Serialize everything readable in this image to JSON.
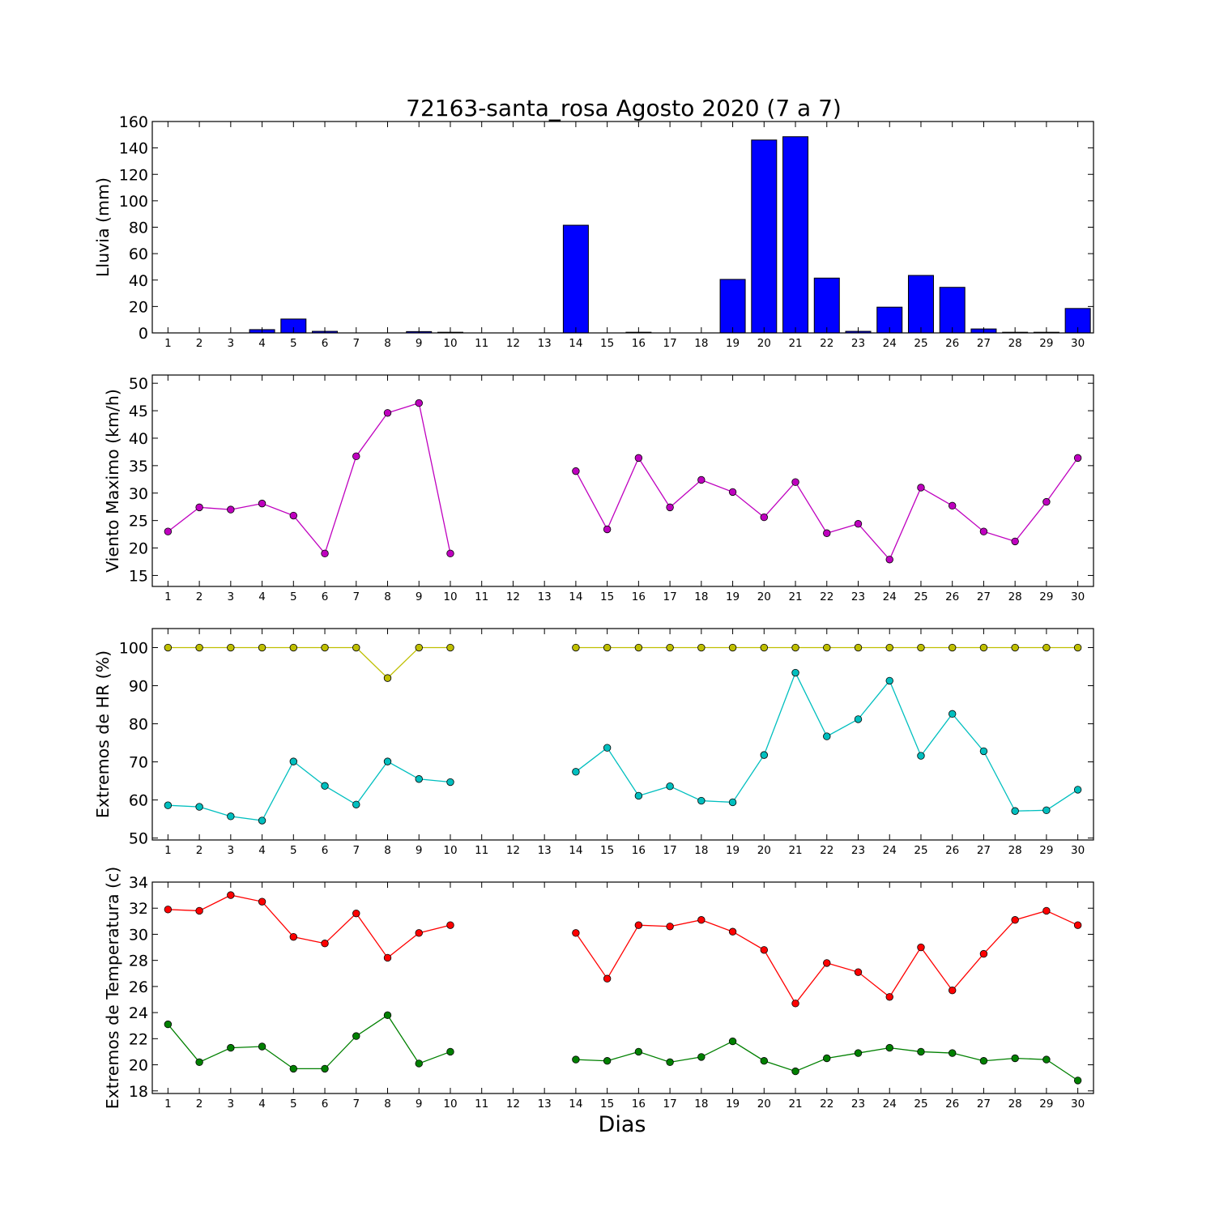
{
  "title": "72163-santa_rosa Agosto 2020  (7 a 7)",
  "xlabel": "Dias",
  "chart_data": [
    {
      "type": "bar",
      "ylabel": "Lluvia (mm)",
      "ylim": [
        0,
        160
      ],
      "yticks": [
        0,
        20,
        40,
        60,
        80,
        100,
        120,
        140,
        160
      ],
      "x": [
        1,
        2,
        3,
        4,
        5,
        6,
        7,
        8,
        9,
        10,
        11,
        12,
        13,
        14,
        15,
        16,
        17,
        18,
        19,
        20,
        21,
        22,
        23,
        24,
        25,
        26,
        27,
        28,
        29,
        30
      ],
      "series": [
        {
          "color": "#0000ff",
          "values": [
            0,
            0,
            0,
            2.5,
            10.5,
            1.2,
            0,
            0,
            1.0,
            0.5,
            0,
            0,
            0,
            81.5,
            0,
            0.5,
            0,
            0,
            40.5,
            146,
            148.5,
            41.5,
            1.2,
            19.5,
            43.5,
            34.5,
            3.0,
            0.5,
            0.5,
            18.5
          ]
        }
      ]
    },
    {
      "type": "line",
      "ylabel": "Viento Maximo (km/h)",
      "ylim": [
        13,
        51.5
      ],
      "yticks": [
        15,
        20,
        25,
        30,
        35,
        40,
        45,
        50
      ],
      "x": [
        1,
        2,
        3,
        4,
        5,
        6,
        7,
        8,
        9,
        10,
        11,
        12,
        13,
        14,
        15,
        16,
        17,
        18,
        19,
        20,
        21,
        22,
        23,
        24,
        25,
        26,
        27,
        28,
        29,
        30
      ],
      "series": [
        {
          "color": "#bf00bf",
          "values": [
            23,
            27.4,
            27,
            28.1,
            25.9,
            19,
            36.7,
            44.6,
            46.4,
            19,
            null,
            null,
            null,
            34,
            23.4,
            36.4,
            27.4,
            32.4,
            30.2,
            25.6,
            32,
            22.7,
            24.4,
            17.9,
            31,
            27.7,
            23,
            21.2,
            28.4,
            36.4
          ]
        }
      ]
    },
    {
      "type": "line",
      "ylabel": "Extremos de HR (%)",
      "ylim": [
        49.5,
        105
      ],
      "yticks": [
        50,
        60,
        70,
        80,
        90,
        100
      ],
      "x": [
        1,
        2,
        3,
        4,
        5,
        6,
        7,
        8,
        9,
        10,
        11,
        12,
        13,
        14,
        15,
        16,
        17,
        18,
        19,
        20,
        21,
        22,
        23,
        24,
        25,
        26,
        27,
        28,
        29,
        30
      ],
      "series": [
        {
          "color": "#bfbf00",
          "values": [
            100,
            100,
            100,
            100,
            100,
            100,
            100,
            92,
            100,
            100,
            null,
            null,
            null,
            100,
            100,
            100,
            100,
            100,
            100,
            100,
            100,
            100,
            100,
            100,
            100,
            100,
            100,
            100,
            100,
            100
          ]
        },
        {
          "color": "#00bfbf",
          "values": [
            58.6,
            58.2,
            55.7,
            54.6,
            70.1,
            63.7,
            58.8,
            70.1,
            65.5,
            64.7,
            null,
            null,
            null,
            67.4,
            73.7,
            61.1,
            63.6,
            59.8,
            59.4,
            71.8,
            93.4,
            76.7,
            81.2,
            91.3,
            71.6,
            82.6,
            72.8,
            57.1,
            57.3,
            62.7
          ]
        }
      ]
    },
    {
      "type": "line",
      "ylabel": "Extremos de Temperatura (c)",
      "ylim": [
        17.8,
        34
      ],
      "yticks": [
        18,
        20,
        22,
        24,
        26,
        28,
        30,
        32,
        34
      ],
      "x": [
        1,
        2,
        3,
        4,
        5,
        6,
        7,
        8,
        9,
        10,
        11,
        12,
        13,
        14,
        15,
        16,
        17,
        18,
        19,
        20,
        21,
        22,
        23,
        24,
        25,
        26,
        27,
        28,
        29,
        30
      ],
      "series": [
        {
          "color": "#ff0000",
          "values": [
            31.9,
            31.8,
            33,
            32.5,
            29.8,
            29.3,
            31.6,
            28.2,
            30.1,
            30.7,
            null,
            null,
            null,
            30.1,
            26.6,
            30.7,
            30.6,
            31.1,
            30.2,
            28.8,
            24.7,
            27.8,
            27.1,
            25.2,
            29,
            25.7,
            28.5,
            31.1,
            31.8,
            30.7
          ]
        },
        {
          "color": "#008000",
          "values": [
            23.1,
            20.2,
            21.3,
            21.4,
            19.7,
            19.7,
            22.2,
            23.8,
            20.1,
            21,
            null,
            null,
            null,
            20.4,
            20.3,
            21,
            20.2,
            20.6,
            21.8,
            20.3,
            19.5,
            20.5,
            20.9,
            21.3,
            21,
            20.9,
            20.3,
            20.5,
            20.4,
            18.8
          ]
        }
      ]
    }
  ]
}
